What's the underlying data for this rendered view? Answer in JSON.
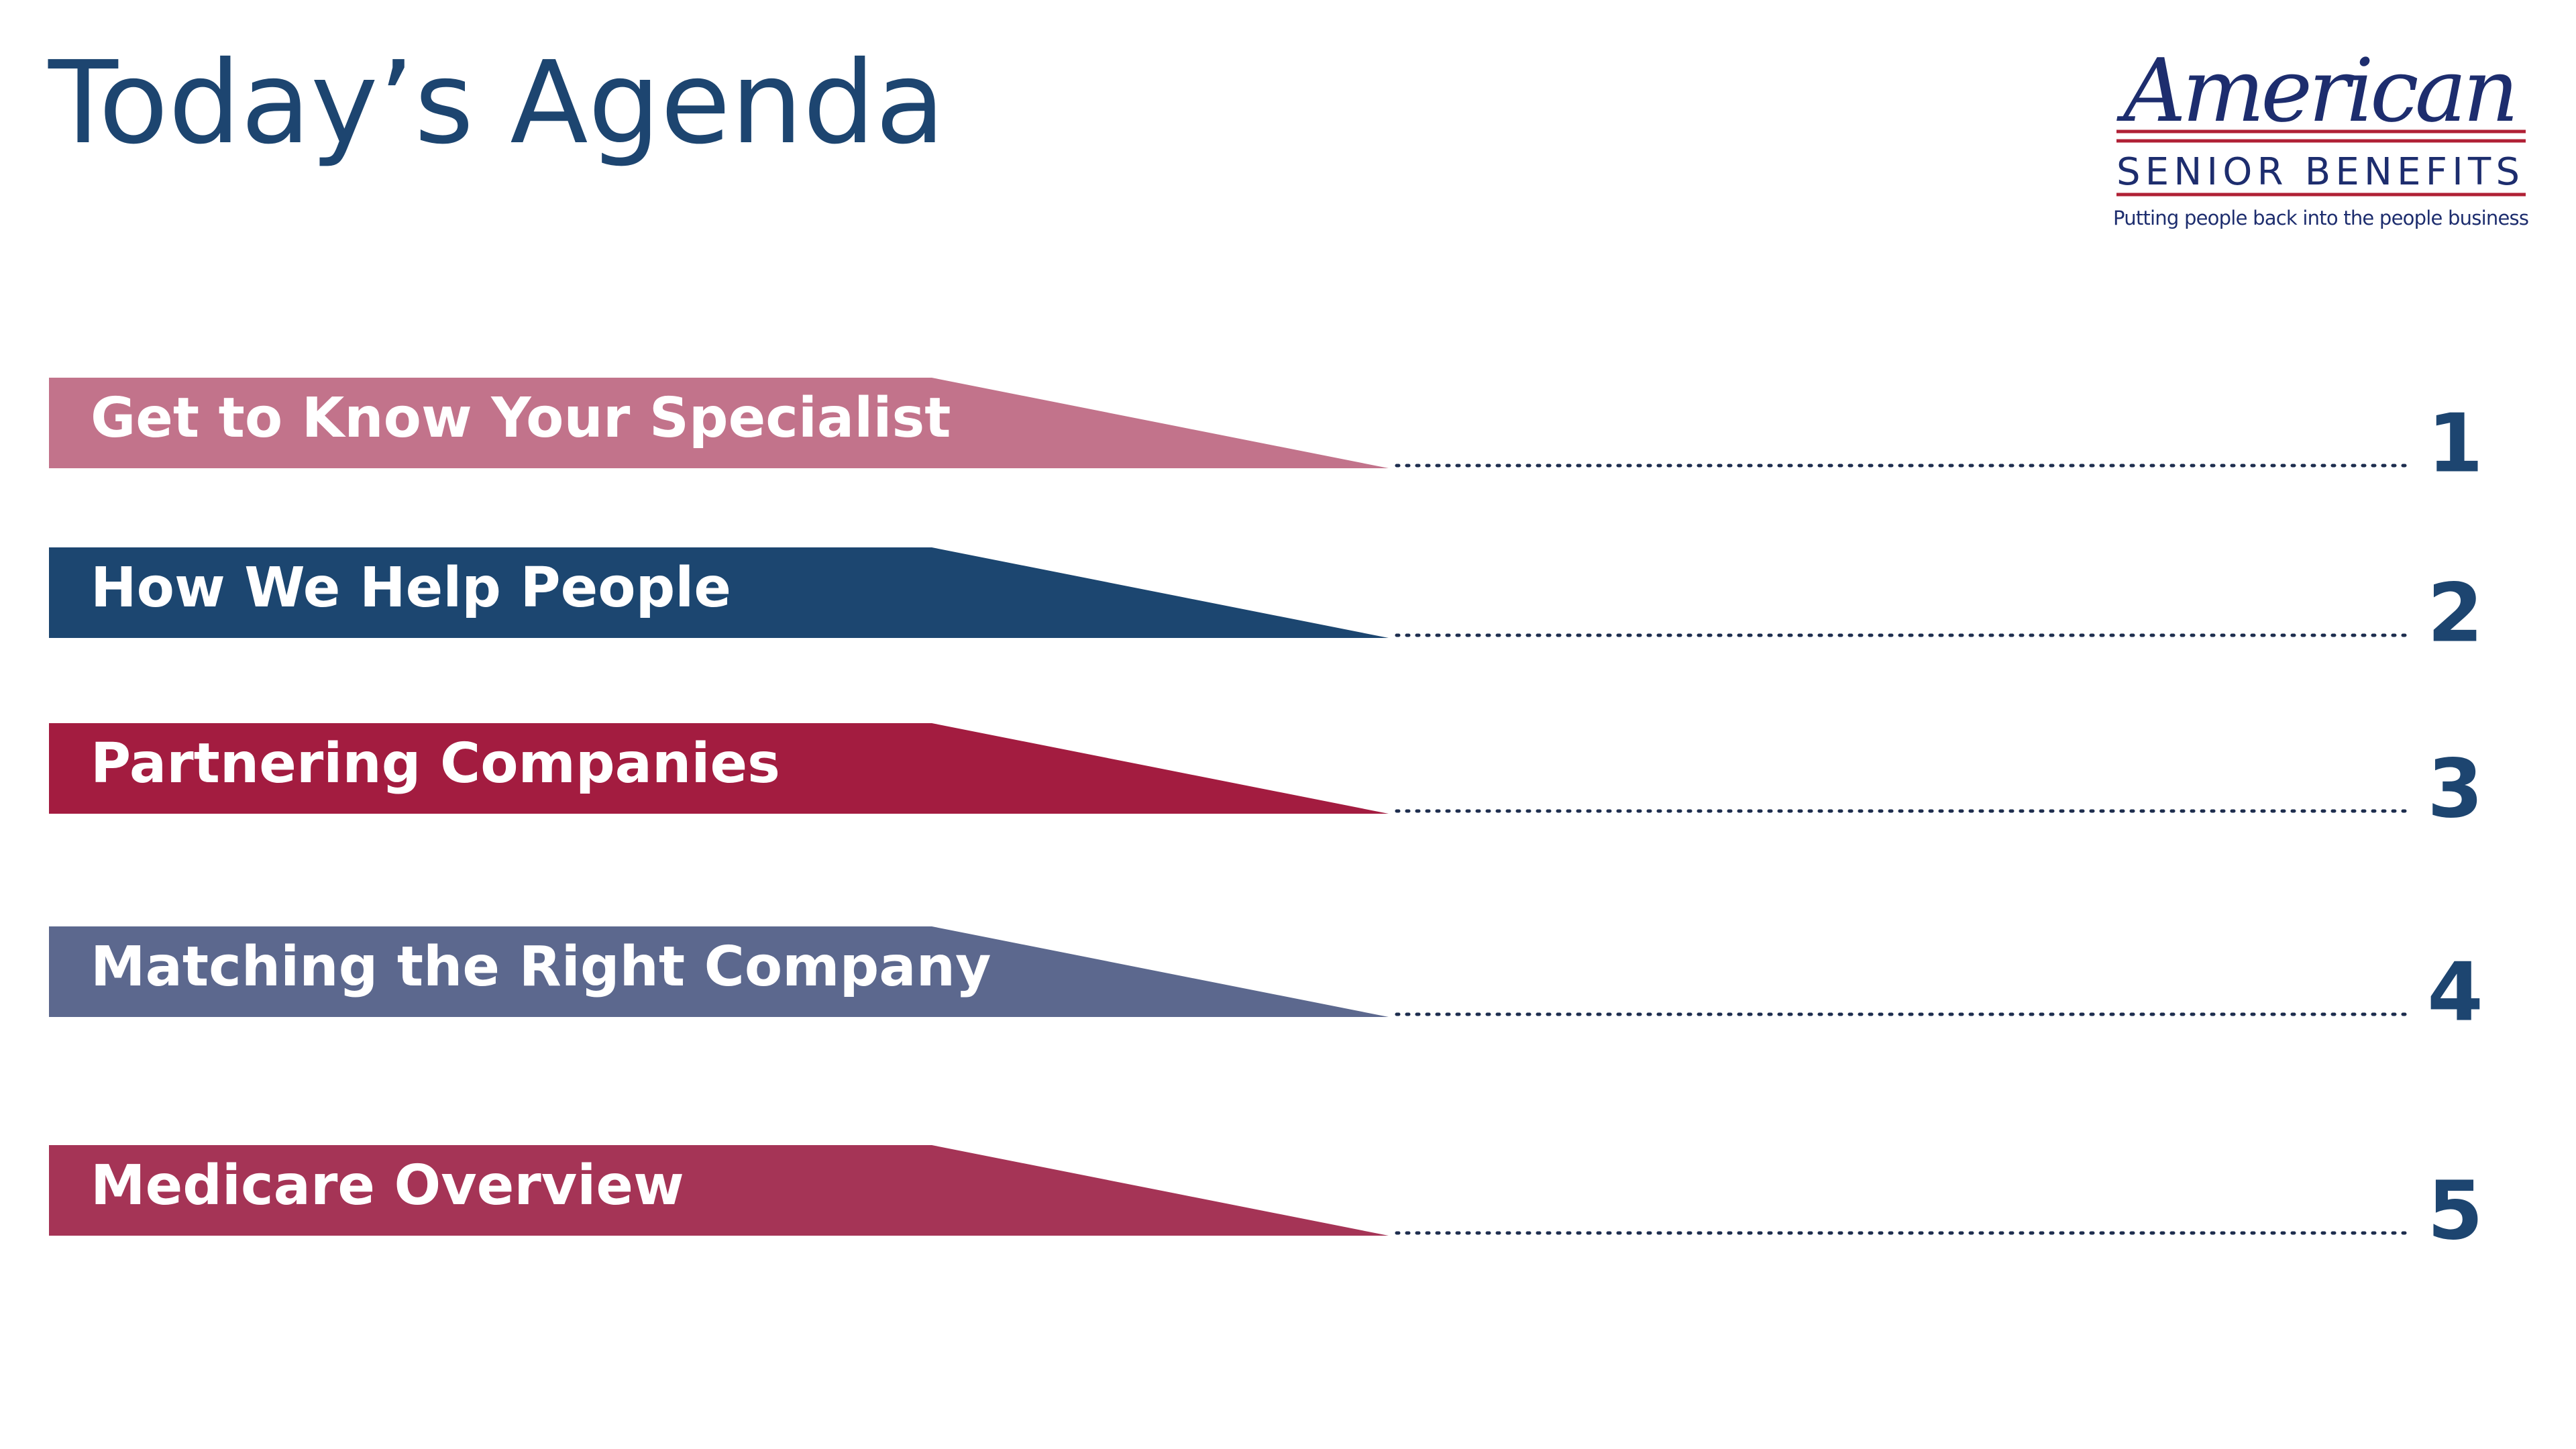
{
  "header": {
    "title": "Today’s Agenda"
  },
  "logo": {
    "name": "American",
    "subtitle": "SENIOR BENEFITS",
    "tagline": "Putting people back into the people business"
  },
  "agenda": {
    "items": [
      {
        "label": "Get to Know Your Specialist",
        "number": 1,
        "color": "#c2738b"
      },
      {
        "label": "How We Help People",
        "number": 2,
        "color": "#1c4670"
      },
      {
        "label": "Partnering Companies",
        "number": 3,
        "color": "#a31c40"
      },
      {
        "label": "Matching the Right Company",
        "number": 4,
        "color": "#5c688e"
      },
      {
        "label": "Medicare Overview",
        "number": 5,
        "color": "#a53456"
      }
    ]
  }
}
